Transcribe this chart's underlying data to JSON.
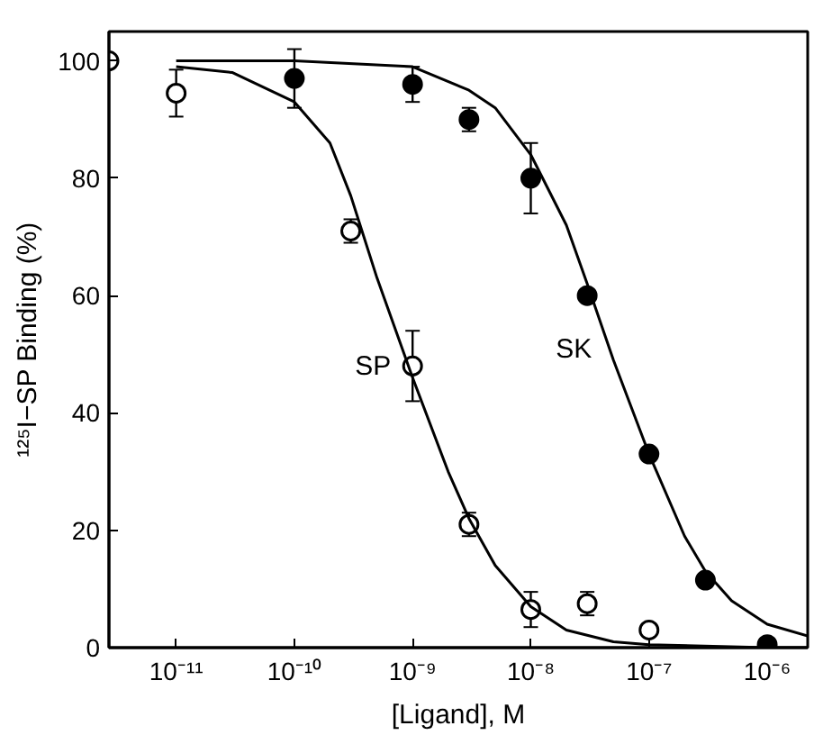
{
  "chart_data": {
    "type": "scatter",
    "xlabel": "[Ligand], M",
    "ylabel": "¹²⁵I−SP Binding (%)",
    "log": "x",
    "grid": false,
    "xlim": [
      2.7e-12,
      2.2e-06
    ],
    "ylim": [
      0,
      105
    ],
    "xticks": [
      {
        "value": 1e-11,
        "label": "10⁻¹¹"
      },
      {
        "value": 1e-10,
        "label": "10⁻¹⁰"
      },
      {
        "value": 1e-09,
        "label": "10⁻⁹"
      },
      {
        "value": 1e-08,
        "label": "10⁻⁸"
      },
      {
        "value": 1e-07,
        "label": "10⁻⁷"
      },
      {
        "value": 1e-06,
        "label": "10⁻⁶"
      }
    ],
    "yticks": [
      0,
      20,
      40,
      60,
      80,
      100
    ],
    "series": [
      {
        "marker": "circle",
        "color": "#ffffff",
        "x": [
          2.7e-12,
          1e-11,
          3e-10,
          1e-09,
          3e-09,
          1e-08,
          3e-08,
          1e-07
        ],
        "values": [
          100,
          94.5,
          71,
          48,
          21,
          6.5,
          7.5,
          3
        ],
        "errors": [
          null,
          4,
          2,
          6,
          2,
          3,
          2,
          null
        ]
      },
      {
        "marker": "circle",
        "color": "#000000",
        "x": [
          1e-10,
          1e-09,
          3e-09,
          1e-08,
          3e-08,
          1e-07,
          3e-07,
          1e-06
        ],
        "values": [
          97,
          96,
          90,
          80,
          60,
          33,
          11.5,
          0.5
        ],
        "errors": [
          5,
          3,
          2,
          6,
          null,
          null,
          null,
          null
        ]
      },
      {
        "type": "line",
        "name": "SP",
        "color": "#000000",
        "x": [
          1e-11,
          3e-11,
          1e-10,
          2e-10,
          3e-10,
          5e-10,
          1e-09,
          2e-09,
          3e-09,
          5e-09,
          1e-08,
          2e-08,
          5e-08,
          1e-07,
          1e-06,
          2.2e-06
        ],
        "values": [
          99,
          98,
          93,
          86,
          77,
          63,
          46,
          30,
          22,
          14,
          7,
          3,
          1,
          0.5,
          0,
          0
        ]
      },
      {
        "type": "line",
        "name": "SK",
        "color": "#000000",
        "x": [
          1e-11,
          1e-10,
          1e-09,
          3e-09,
          5e-09,
          1e-08,
          2e-08,
          3e-08,
          5e-08,
          1e-07,
          2e-07,
          3e-07,
          5e-07,
          1e-06,
          2.2e-06
        ],
        "values": [
          100,
          100,
          99,
          95,
          92,
          84,
          72,
          62,
          49,
          33,
          19,
          13,
          8,
          4,
          2
        ]
      }
    ]
  }
}
